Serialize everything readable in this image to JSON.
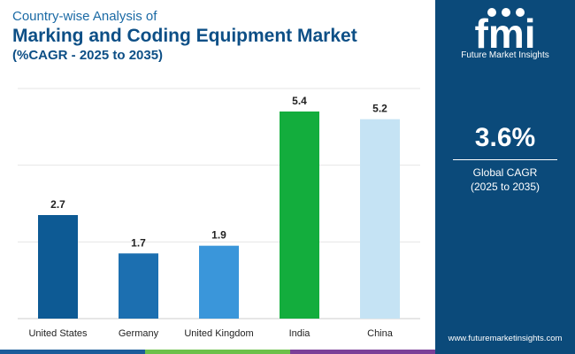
{
  "header": {
    "subtitle": "Country-wise Analysis of",
    "title": "Marking and Coding Equipment Market",
    "cagr_range": "(%CAGR - 2025 to 2035)"
  },
  "chart_data": {
    "type": "bar",
    "categories": [
      "United States",
      "Germany",
      "United Kingdom",
      "India",
      "China"
    ],
    "values": [
      2.7,
      1.7,
      1.9,
      5.4,
      5.2
    ],
    "value_labels": [
      "2.7",
      "1.7",
      "1.9",
      "5.4",
      "5.2"
    ],
    "colors": [
      "#0d5a94",
      "#1c6fb0",
      "#3a96da",
      "#13ad3d",
      "#c5e3f4"
    ],
    "ylim": [
      0,
      6
    ],
    "grid": true,
    "xlabel": "",
    "ylabel": ""
  },
  "side_panel": {
    "brand": "fmi",
    "brand_name": "Future Market Insights",
    "cagr_value": "3.6%",
    "cagr_label": "Global CAGR",
    "cagr_period": "(2025 to 2035)",
    "website": "www.futuremarketinsights.com",
    "background": "#0b4a7a"
  },
  "footer_colors": [
    "#1b5c9a",
    "#6cc04a",
    "#7b3f98"
  ]
}
